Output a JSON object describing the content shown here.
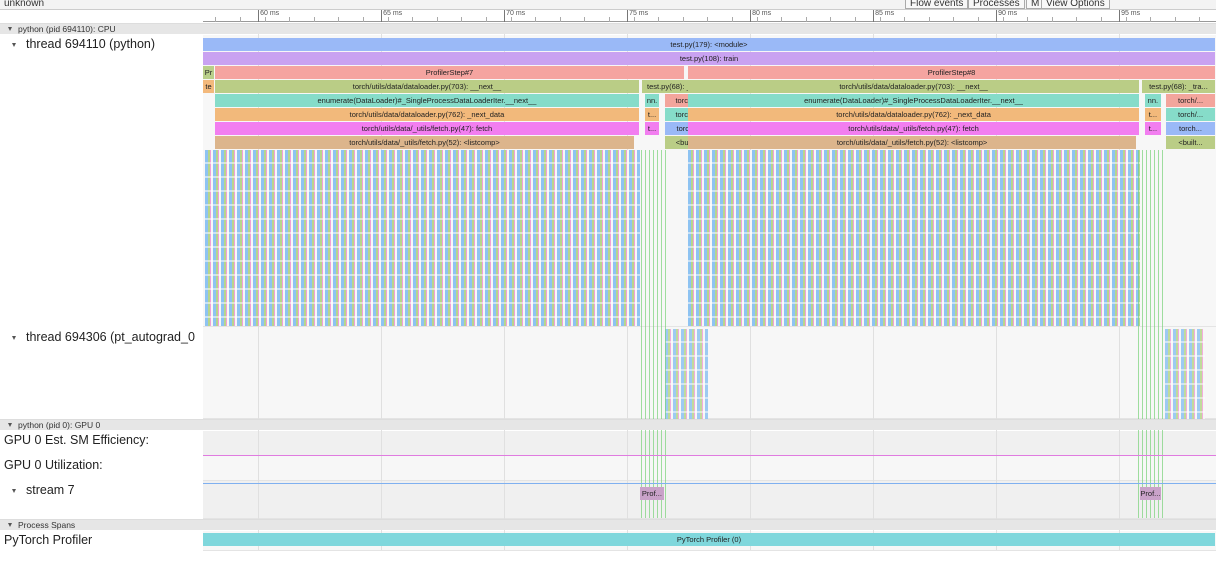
{
  "header": {
    "title": "unknown",
    "buttons": [
      "Flow events",
      "Processes",
      "M",
      "View Options"
    ]
  },
  "ruler": {
    "range": [
      57.76,
      98.94
    ],
    "ticks": [
      {
        "value": 60,
        "label": "60 ms"
      },
      {
        "value": 65,
        "label": "65 ms"
      },
      {
        "value": 70,
        "label": "70 ms"
      },
      {
        "value": 75,
        "label": "75 ms"
      },
      {
        "value": 80,
        "label": "80 ms"
      },
      {
        "value": 85,
        "label": "85 ms"
      },
      {
        "value": 90,
        "label": "90 ms"
      },
      {
        "value": 95,
        "label": "95 ms"
      }
    ]
  },
  "processes": [
    {
      "label": "python (pid 694110): CPU",
      "tracks": [
        {
          "label": "thread 694110 (python)",
          "slices": [
            {
              "label": "test.py(179): <module>",
              "start": 57.76,
              "end": 98.94,
              "depth": 0,
              "color": "#9ab9f7"
            },
            {
              "label": "test.py(108): train",
              "start": 57.76,
              "end": 98.94,
              "depth": 1,
              "color": "#c9a2f1"
            },
            {
              "label": "Pr",
              "start": 57.76,
              "end": 58.25,
              "depth": 2,
              "color": "#b9cf8a"
            },
            {
              "label": "ProfilerStep#7",
              "start": 58.25,
              "end": 77.35,
              "depth": 2,
              "color": "#f5a4a0"
            },
            {
              "label": "ProfilerStep#8",
              "start": 77.48,
              "end": 98.94,
              "depth": 2,
              "color": "#f5a4a0"
            },
            {
              "label": "te",
              "start": 57.76,
              "end": 58.25,
              "depth": 3,
              "color": "#f3b97c"
            },
            {
              "label": "torch/utils/data/dataloader.py(703): __next__",
              "start": 58.25,
              "end": 75.52,
              "depth": 3,
              "color": "#bacd86"
            },
            {
              "label": "test.py(68): _tra...",
              "start": 75.6,
              "end": 78.45,
              "depth": 3,
              "color": "#bacd86"
            },
            {
              "label": "torch/utils/data/dataloader.py(703): __next__",
              "start": 77.48,
              "end": 95.85,
              "depth": 3,
              "color": "#bacd86"
            },
            {
              "label": "test.py(68): _tra...",
              "start": 95.93,
              "end": 98.94,
              "depth": 3,
              "color": "#bacd86"
            },
            {
              "label": "enumerate(DataLoader)#_SingleProcessDataLoaderIter.__next__",
              "start": 58.25,
              "end": 75.52,
              "depth": 4,
              "color": "#86dcc9"
            },
            {
              "label": "nn.",
              "start": 75.73,
              "end": 76.34,
              "depth": 4,
              "color": "#86dcc9"
            },
            {
              "label": "torch/...",
              "start": 76.54,
              "end": 78.45,
              "depth": 4,
              "color": "#f3a59c"
            },
            {
              "label": "enumerate(DataLoader)#_SingleProcessDataLoaderIter.__next__",
              "start": 77.48,
              "end": 95.85,
              "depth": 4,
              "color": "#86dcc9"
            },
            {
              "label": "nn.",
              "start": 96.05,
              "end": 96.74,
              "depth": 4,
              "color": "#86dcc9"
            },
            {
              "label": "torch/...",
              "start": 96.91,
              "end": 98.94,
              "depth": 4,
              "color": "#f3a59c"
            },
            {
              "label": "torch/utils/data/dataloader.py(762): _next_data",
              "start": 58.25,
              "end": 75.52,
              "depth": 5,
              "color": "#f2b97b"
            },
            {
              "label": "t...",
              "start": 75.73,
              "end": 76.34,
              "depth": 5,
              "color": "#f2b97b"
            },
            {
              "label": "torch/...",
              "start": 76.54,
              "end": 78.45,
              "depth": 5,
              "color": "#86dcc9"
            },
            {
              "label": "torch/utils/data/dataloader.py(762): _next_data",
              "start": 77.48,
              "end": 95.85,
              "depth": 5,
              "color": "#f2b97b"
            },
            {
              "label": "t...",
              "start": 96.05,
              "end": 96.74,
              "depth": 5,
              "color": "#f2b97b"
            },
            {
              "label": "torch/...",
              "start": 96.91,
              "end": 98.94,
              "depth": 5,
              "color": "#86dcc9"
            },
            {
              "label": "torch/utils/data/_utils/fetch.py(47): fetch",
              "start": 58.25,
              "end": 75.52,
              "depth": 6,
              "color": "#f27ef0"
            },
            {
              "label": "t...",
              "start": 75.73,
              "end": 76.34,
              "depth": 6,
              "color": "#f27ef0"
            },
            {
              "label": "torch...",
              "start": 76.54,
              "end": 78.45,
              "depth": 6,
              "color": "#9ab9f7"
            },
            {
              "label": "torch/utils/data/_utils/fetch.py(47): fetch",
              "start": 77.48,
              "end": 95.85,
              "depth": 6,
              "color": "#f27ef0"
            },
            {
              "label": "t...",
              "start": 96.05,
              "end": 96.74,
              "depth": 6,
              "color": "#f27ef0"
            },
            {
              "label": "torch...",
              "start": 96.91,
              "end": 98.94,
              "depth": 6,
              "color": "#9ab9f7"
            },
            {
              "label": "torch/utils/data/_utils/fetch.py(52): <listcomp>",
              "start": 58.25,
              "end": 75.32,
              "depth": 7,
              "color": "#dcb58c"
            },
            {
              "label": "<built...",
              "start": 76.54,
              "end": 78.45,
              "depth": 7,
              "color": "#bacd86"
            },
            {
              "label": "torch/utils/data/_utils/fetch.py(52): <listcomp>",
              "start": 77.48,
              "end": 95.73,
              "depth": 7,
              "color": "#dcb58c"
            },
            {
              "label": "<built...",
              "start": 96.91,
              "end": 98.94,
              "depth": 7,
              "color": "#bacd86"
            }
          ]
        },
        {
          "label": "thread 694306 (pt_autograd_0",
          "slices": []
        }
      ]
    },
    {
      "label": "python (pid 0): GPU 0",
      "tracks": [
        {
          "label": "GPU 0 Est. SM Efficiency:",
          "slices": []
        },
        {
          "label": "GPU 0 Utilization:",
          "slices": []
        },
        {
          "label": "stream 7",
          "slices": [
            {
              "label": "Prof...",
              "start": 75.52,
              "end": 76.54,
              "depth": 0,
              "color": "#c9a2c9"
            },
            {
              "label": "Prof...",
              "start": 95.85,
              "end": 96.74,
              "depth": 0,
              "color": "#c9a2c9"
            }
          ]
        }
      ]
    },
    {
      "label": "Process Spans",
      "tracks": [
        {
          "label": "PyTorch Profiler",
          "slices": [
            {
              "label": "PyTorch Profiler (0)",
              "start": 57.76,
              "end": 98.94,
              "depth": 0,
              "color": "#7fd7dc"
            }
          ]
        }
      ]
    }
  ]
}
